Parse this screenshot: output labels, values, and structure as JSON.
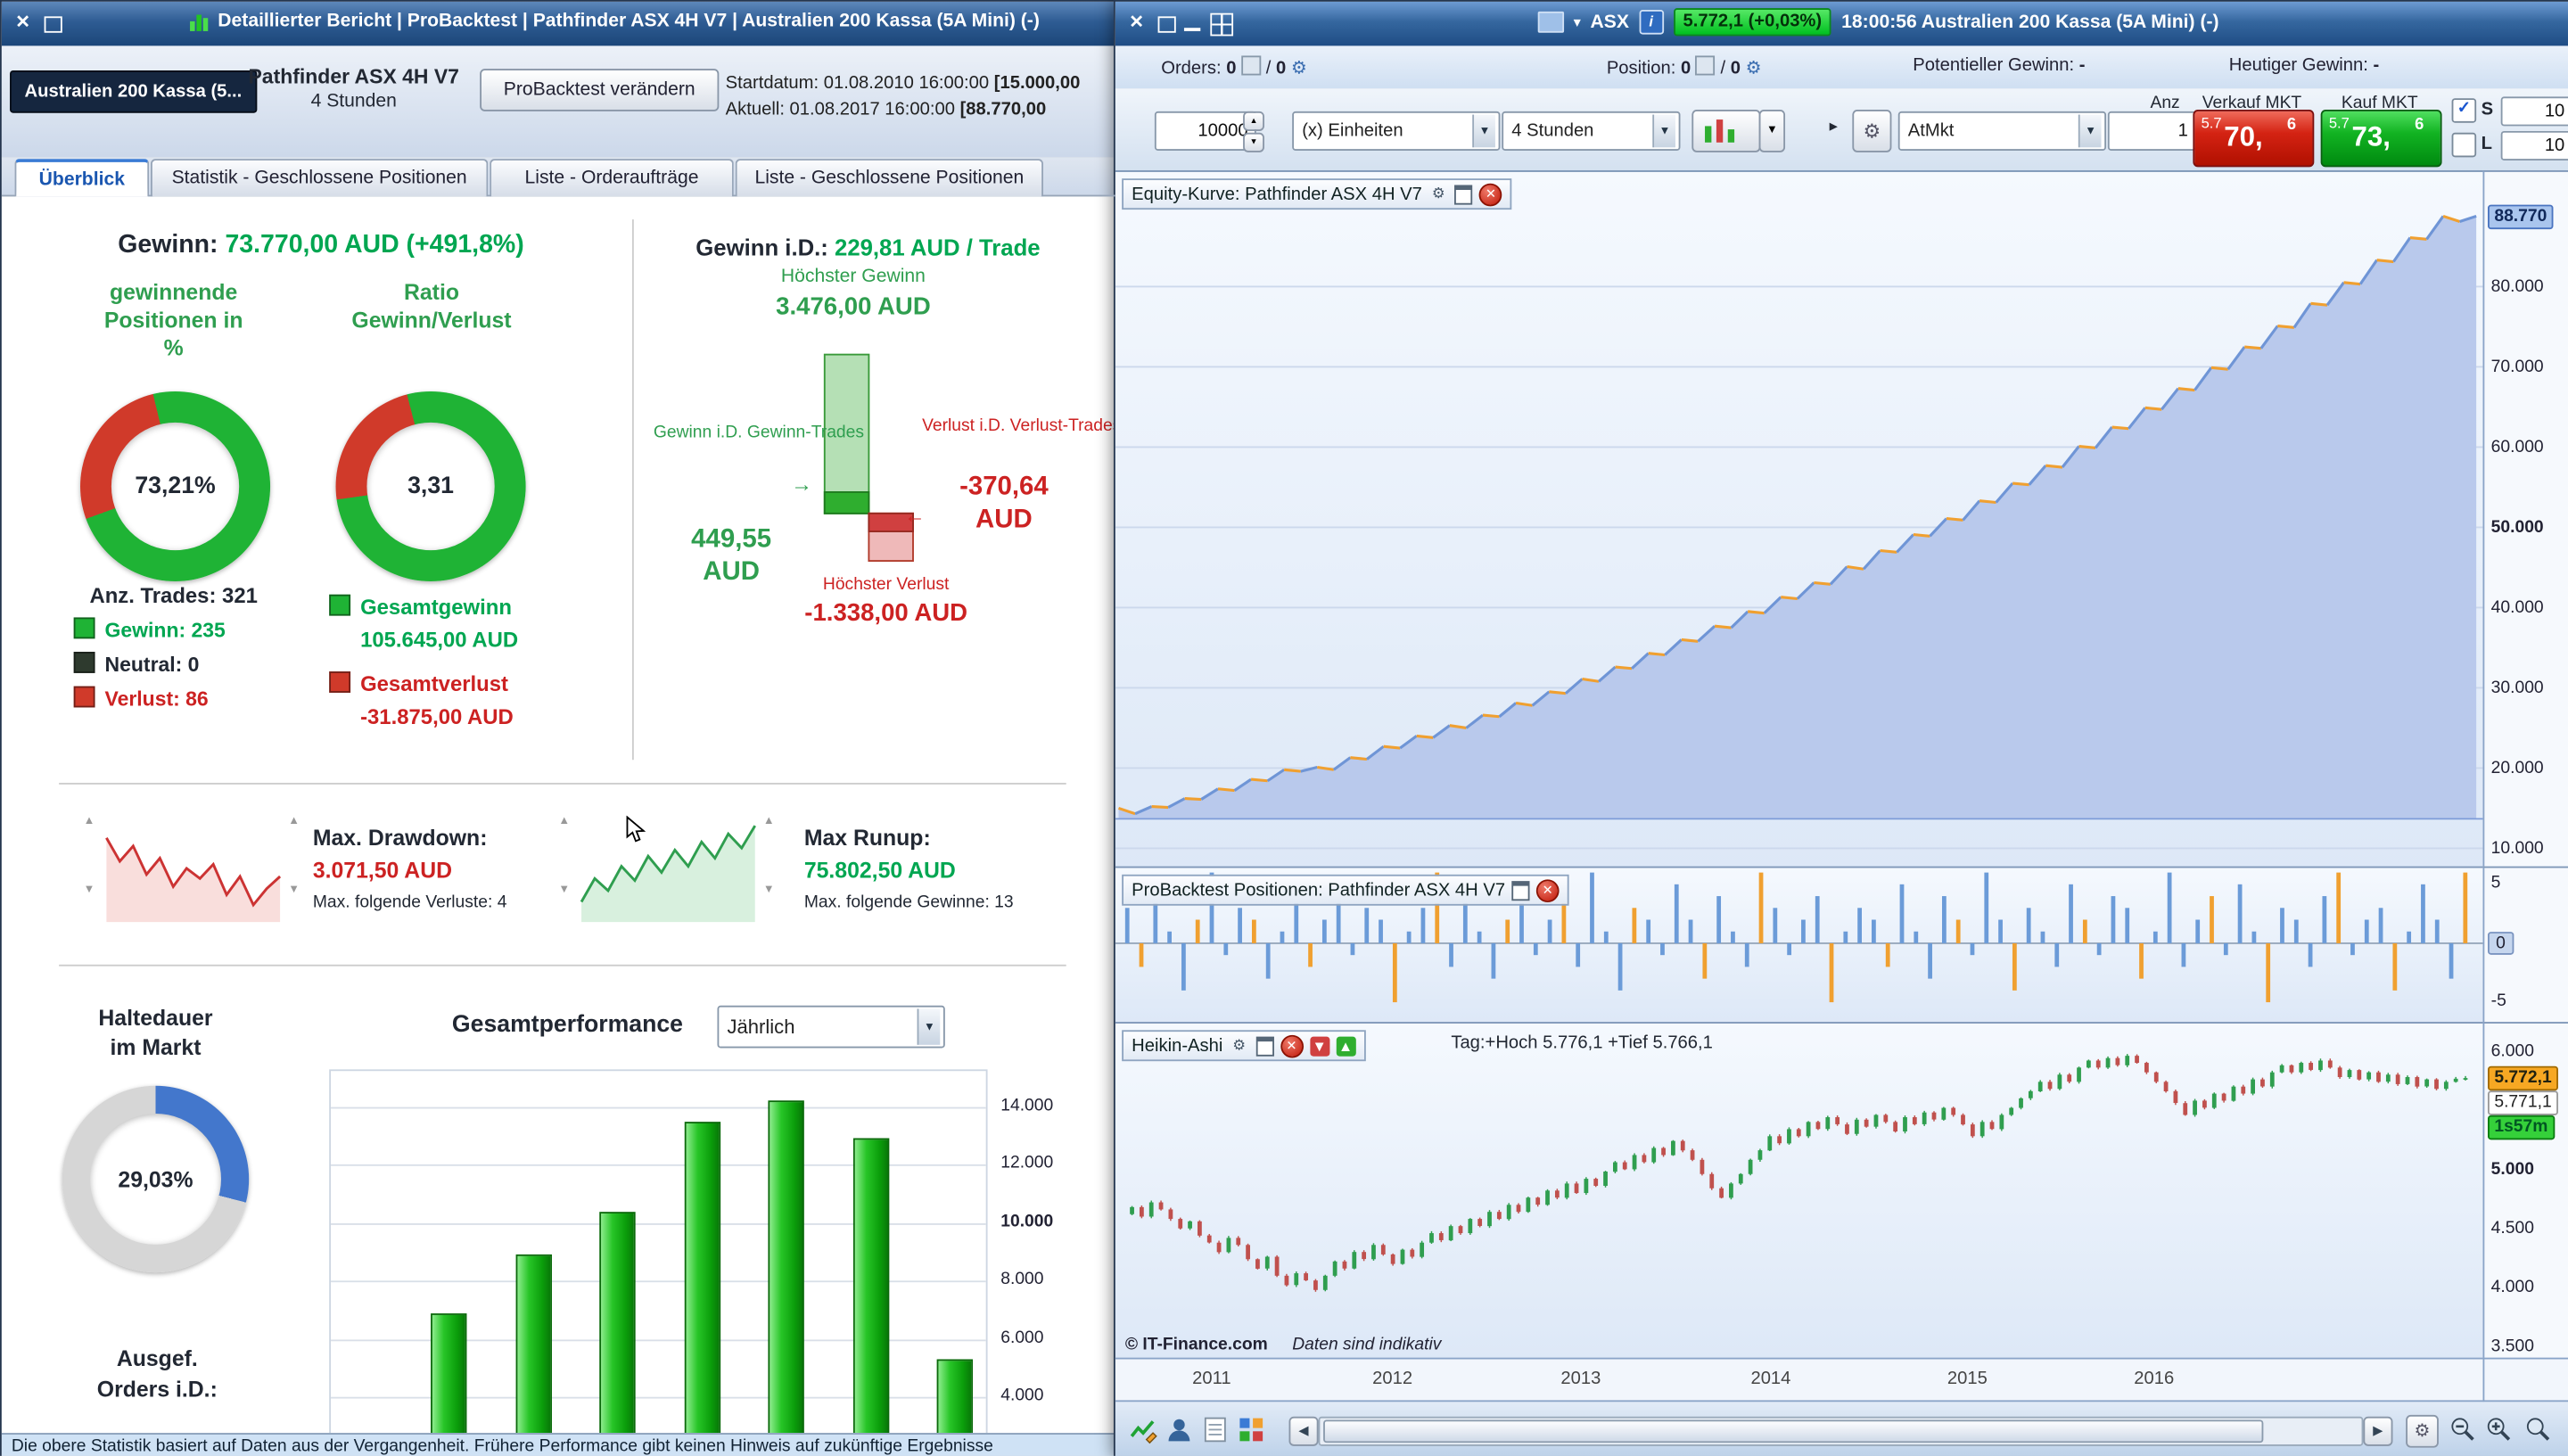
{
  "icons": {
    "close": "✕",
    "minimize": "─",
    "caret_down": "▼",
    "caret_up": "▲",
    "arrow_left": "◀",
    "arrow_right": "▶",
    "gear": "⚙",
    "info_i": "i",
    "play": "▸",
    "check": "✓",
    "arrow_right_long": "→",
    "arrow_left_long": "←",
    "caret_down_small": "▾"
  },
  "left_window": {
    "title": "Detaillierter Bericht | ProBacktest | Pathfinder ASX 4H V7 | Australien 200 Kassa (5A Mini) (-)",
    "header": {
      "instrument": "Australien 200 Kassa (5...",
      "strategy": "Pathfinder ASX 4H V7",
      "timeframe": "4 Stunden",
      "modify_button": "ProBacktest verändern",
      "start_label": "Startdatum:",
      "start_datetime": "01.08.2010 16:00:00",
      "start_amount": "[15.000,00",
      "current_label": "Aktuell:",
      "current_datetime": "01.08.2017 16:00:00",
      "current_amount": "[88.770,00"
    },
    "tabs": [
      {
        "label": "Überblick"
      },
      {
        "label": "Statistik - Geschlossene Positionen"
      },
      {
        "label": "Liste - Orderaufträge"
      },
      {
        "label": "Liste - Geschlossene Positionen"
      }
    ],
    "overview": {
      "profit_label": "Gewinn:",
      "profit_value": "73.770,00 AUD (+491,8%)",
      "win_pct_title": "gewinnende\nPositionen in\n%",
      "win_pct_value": "73,21%",
      "ratio_title": "Ratio\nGewinn/Verlust",
      "ratio_value": "3,31",
      "trades_label": "Anz. Trades: 321",
      "trades_legend": [
        {
          "label": "Gewinn: 235"
        },
        {
          "label": "Neutral: 0"
        },
        {
          "label": "Verlust: 86"
        }
      ],
      "total_win_label": "Gesamtgewinn",
      "total_win_value": "105.645,00 AUD",
      "total_loss_label": "Gesamtverlust",
      "total_loss_value": "-31.875,00 AUD",
      "avg_trade_label": "Gewinn i.D.:",
      "avg_trade_value": "229,81 AUD / Trade",
      "highest_win_label": "Höchster Gewinn",
      "highest_win_value": "3.476,00 AUD",
      "avg_win_caption": "Gewinn i.D.\nGewinn-Trades",
      "avg_win_value": "449,55\nAUD",
      "avg_loss_caption": "Verlust i.D.\nVerlust-Trades",
      "avg_loss_value": "-370,64\nAUD",
      "highest_loss_label": "Höchster Verlust",
      "highest_loss_value": "-1.338,00 AUD",
      "drawdown_label": "Max. Drawdown:",
      "drawdown_value": "3.071,50 AUD",
      "drawdown_sub": "Max. folgende Verluste: 4",
      "runup_label": "Max Runup:",
      "runup_value": "75.802,50 AUD",
      "runup_sub": "Max. folgende Gewinne: 13",
      "holding_title": "Haltedauer\nim Markt",
      "holding_value": "29,03%",
      "perf_title": "Gesamtperformance",
      "perf_period": "Jährlich",
      "orders_avg_label": "Ausgef.\nOrders i.D.:"
    },
    "status_text": "Die obere Statistik basiert auf Daten aus der Vergangenheit. Frühere Performance gibt keinen Hinweis auf zukünftige Ergebnisse"
  },
  "right_window": {
    "titlebar": {
      "symbol": "ASX",
      "price_badge": "5.772,1 (+0,03%)",
      "session": "18:00:56 Australien 200 Kassa (5A Mini) (-)"
    },
    "summary": {
      "orders_label": "Orders:",
      "orders_count": "0",
      "orders_count2": "0",
      "position_label": "Position:",
      "position_count": "0",
      "position_count2": "0",
      "slash": "/",
      "potential_label": "Potentieller Gewinn:",
      "potential_value": "-",
      "today_label": "Heutiger Gewinn:",
      "today_value": "-"
    },
    "trade": {
      "quantity": "10000",
      "unit_option": "(x) Einheiten",
      "timeframe_option": "4 Stunden",
      "order_type": "AtMkt",
      "amount_label": "Anz",
      "amount_value": "1",
      "sell_label": "Verkauf MKT",
      "sell": {
        "pre": "5.7",
        "main": "70,",
        "sup": "6"
      },
      "buy_label": "Kauf MKT",
      "buy": {
        "pre": "5.7",
        "main": "73,",
        "sup": "6"
      },
      "s_label": "S",
      "s_value": "10",
      "l_label": "L",
      "l_value": "10"
    },
    "panels": {
      "equity_title": "Equity-Kurve: Pathfinder ASX 4H V7",
      "positions_title": "ProBacktest Positionen: Pathfinder ASX 4H V7",
      "ha_title": "Heikin-Ashi",
      "ha_info": "Tag:+Hoch 5.776,1 +Tief 5.766,1",
      "copyright": "© IT-Finance.com",
      "disclaimer": "Daten sind indikativ",
      "equity_last_label": "88.770",
      "ha_last_price": "5.772,1",
      "ha_prev_price": "5.771,1",
      "ha_countdown": "1s57m"
    },
    "xaxis_years": [
      "2011",
      "2012",
      "2013",
      "2014",
      "2015",
      "2016"
    ]
  },
  "chart_data": {
    "equity": {
      "type": "area",
      "unit": "AUD",
      "start_value": 15000,
      "last_value": 88770,
      "gridlines": [
        10000,
        20000,
        30000,
        40000,
        50000,
        60000,
        70000,
        80000
      ],
      "axis": [
        {
          "t": "80.000",
          "v": 80000
        },
        {
          "t": "70.000",
          "v": 70000
        },
        {
          "t": "60.000",
          "v": 60000
        },
        {
          "t": "50.000",
          "v": 50000,
          "b": 1
        },
        {
          "t": "40.000",
          "v": 40000
        },
        {
          "t": "30.000",
          "v": 30000
        },
        {
          "t": "20.000",
          "v": 20000
        },
        {
          "t": "10.000",
          "v": 10000
        }
      ],
      "values": [
        15000,
        14300,
        15200,
        15100,
        16200,
        16100,
        17400,
        17200,
        18600,
        18400,
        19800,
        19600,
        20100,
        19800,
        21300,
        21100,
        22700,
        22500,
        24000,
        23800,
        25300,
        25000,
        26600,
        26400,
        28100,
        27800,
        29500,
        29300,
        31100,
        30800,
        32600,
        32400,
        34300,
        34100,
        36000,
        35800,
        37700,
        37500,
        39500,
        39300,
        41300,
        41100,
        43100,
        42900,
        45100,
        44800,
        47100,
        46900,
        49100,
        48900,
        51100,
        50900,
        53300,
        53100,
        55500,
        55300,
        57700,
        57500,
        60100,
        59900,
        62500,
        62300,
        64900,
        64700,
        67300,
        67100,
        69900,
        69700,
        72500,
        72300,
        75100,
        74900,
        77900,
        77700,
        80500,
        80300,
        83300,
        83100,
        86100,
        85900,
        88770,
        88100,
        88770
      ]
    },
    "positions": {
      "type": "bar",
      "axis": [
        {
          "t": "5",
          "v": 5
        },
        {
          "t": "0",
          "v": 0,
          "hl": 1
        },
        {
          "t": "-5",
          "v": -5
        }
      ],
      "values": [
        3,
        -2,
        5,
        1,
        -4,
        2,
        6,
        -1,
        3,
        2,
        -3,
        1,
        4,
        -2,
        2,
        5,
        -1,
        3,
        2,
        -5,
        1,
        3,
        6,
        -2,
        4,
        1,
        -3,
        2,
        5,
        -1,
        2,
        4,
        -2,
        6,
        1,
        -4,
        3,
        2,
        -1,
        5,
        2,
        -3,
        4,
        1,
        -2,
        6,
        3,
        -1,
        2,
        4,
        -5,
        1,
        3,
        2,
        -2,
        5,
        1,
        -3,
        4,
        2,
        -1,
        6,
        2,
        -4,
        3,
        1,
        -2,
        5,
        2,
        -1,
        4,
        3,
        -3,
        1,
        6,
        -2,
        2,
        4,
        -1,
        5,
        1,
        -5,
        3,
        2,
        -2,
        4,
        6,
        -1,
        2,
        3,
        -4,
        1,
        5,
        2,
        -3,
        6
      ],
      "orange_indices": [
        1,
        5,
        9,
        13,
        19,
        22,
        27,
        31,
        36,
        41,
        45,
        50,
        54,
        59,
        63,
        68,
        72,
        77,
        81,
        86,
        90,
        95
      ]
    },
    "heikin_ashi": {
      "type": "candlestick",
      "axis": [
        {
          "t": "6.000",
          "v": 6000
        },
        {
          "t": "5.000",
          "v": 5000,
          "b": 1
        },
        {
          "t": "4.500",
          "v": 4500
        },
        {
          "t": "4.000",
          "v": 4000
        },
        {
          "t": "3.500",
          "v": 3500
        }
      ],
      "closes": [
        4620,
        4680,
        4600,
        4720,
        4660,
        4580,
        4500,
        4560,
        4440,
        4380,
        4300,
        4420,
        4360,
        4240,
        4160,
        4260,
        4100,
        4020,
        4120,
        4060,
        3980,
        4100,
        4220,
        4160,
        4300,
        4240,
        4360,
        4280,
        4200,
        4320,
        4260,
        4380,
        4460,
        4400,
        4520,
        4460,
        4580,
        4520,
        4640,
        4580,
        4700,
        4640,
        4760,
        4700,
        4820,
        4760,
        4880,
        4800,
        4920,
        4860,
        4980,
        5060,
        5000,
        5120,
        5060,
        5180,
        5120,
        5240,
        5160,
        5080,
        4960,
        4840,
        4760,
        4880,
        4960,
        5080,
        5160,
        5280,
        5220,
        5340,
        5280,
        5400,
        5340,
        5440,
        5380,
        5300,
        5420,
        5360,
        5460,
        5400,
        5320,
        5440,
        5380,
        5480,
        5420,
        5520,
        5460,
        5380,
        5280,
        5400,
        5340,
        5460,
        5520,
        5600,
        5660,
        5740,
        5680,
        5800,
        5740,
        5860,
        5920,
        5860,
        5940,
        5880,
        5960,
        5900,
        5820,
        5740,
        5660,
        5560,
        5460,
        5580,
        5520,
        5640,
        5580,
        5700,
        5640,
        5760,
        5700,
        5820,
        5880,
        5820,
        5900,
        5840,
        5920,
        5860,
        5780,
        5840,
        5760,
        5820,
        5740,
        5800,
        5720,
        5780,
        5700,
        5760,
        5680,
        5740,
        5766,
        5772
      ]
    },
    "yearly_performance": {
      "type": "bar",
      "values": [
        6900,
        8900,
        10400,
        13500,
        14200,
        12900,
        5300
      ],
      "axis": [
        {
          "t": "14.000",
          "v": 14000
        },
        {
          "t": "12.000",
          "v": 12000
        },
        {
          "t": "10.000",
          "v": 10000,
          "b": 1
        },
        {
          "t": "8.000",
          "v": 8000
        },
        {
          "t": "6.000",
          "v": 6000
        },
        {
          "t": "4.000",
          "v": 4000
        }
      ],
      "ylim": [
        4000,
        14500
      ]
    },
    "win_donut": {
      "type": "pie",
      "start_deg": 250,
      "seg1_color": "#d03a2a",
      "seg1_pct": 26.8,
      "seg2_color": "#1fb335"
    },
    "ratio_donut": {
      "type": "pie",
      "start_deg": 262,
      "seg1_color": "#d03a2a",
      "seg1_pct": 23.2,
      "seg2_color": "#1fb335"
    },
    "holding_donut": {
      "type": "pie",
      "start_deg": 0,
      "seg1_color": "#4377cc",
      "seg1_pct": 29.03,
      "seg2_color": "#d6d6d6"
    },
    "avg_trade": {
      "highest_win": 3476,
      "avg_win": 449.55,
      "avg_loss": -370.64,
      "highest_loss": -1338
    },
    "drawdown_spark": {
      "points": [
        22,
        45,
        30,
        58,
        42,
        70,
        52,
        62,
        48,
        78,
        60,
        88,
        72,
        60
      ]
    },
    "runup_spark": {
      "points": [
        85,
        62,
        74,
        50,
        64,
        40,
        56,
        34,
        50,
        26,
        42,
        18,
        32,
        10
      ]
    }
  }
}
